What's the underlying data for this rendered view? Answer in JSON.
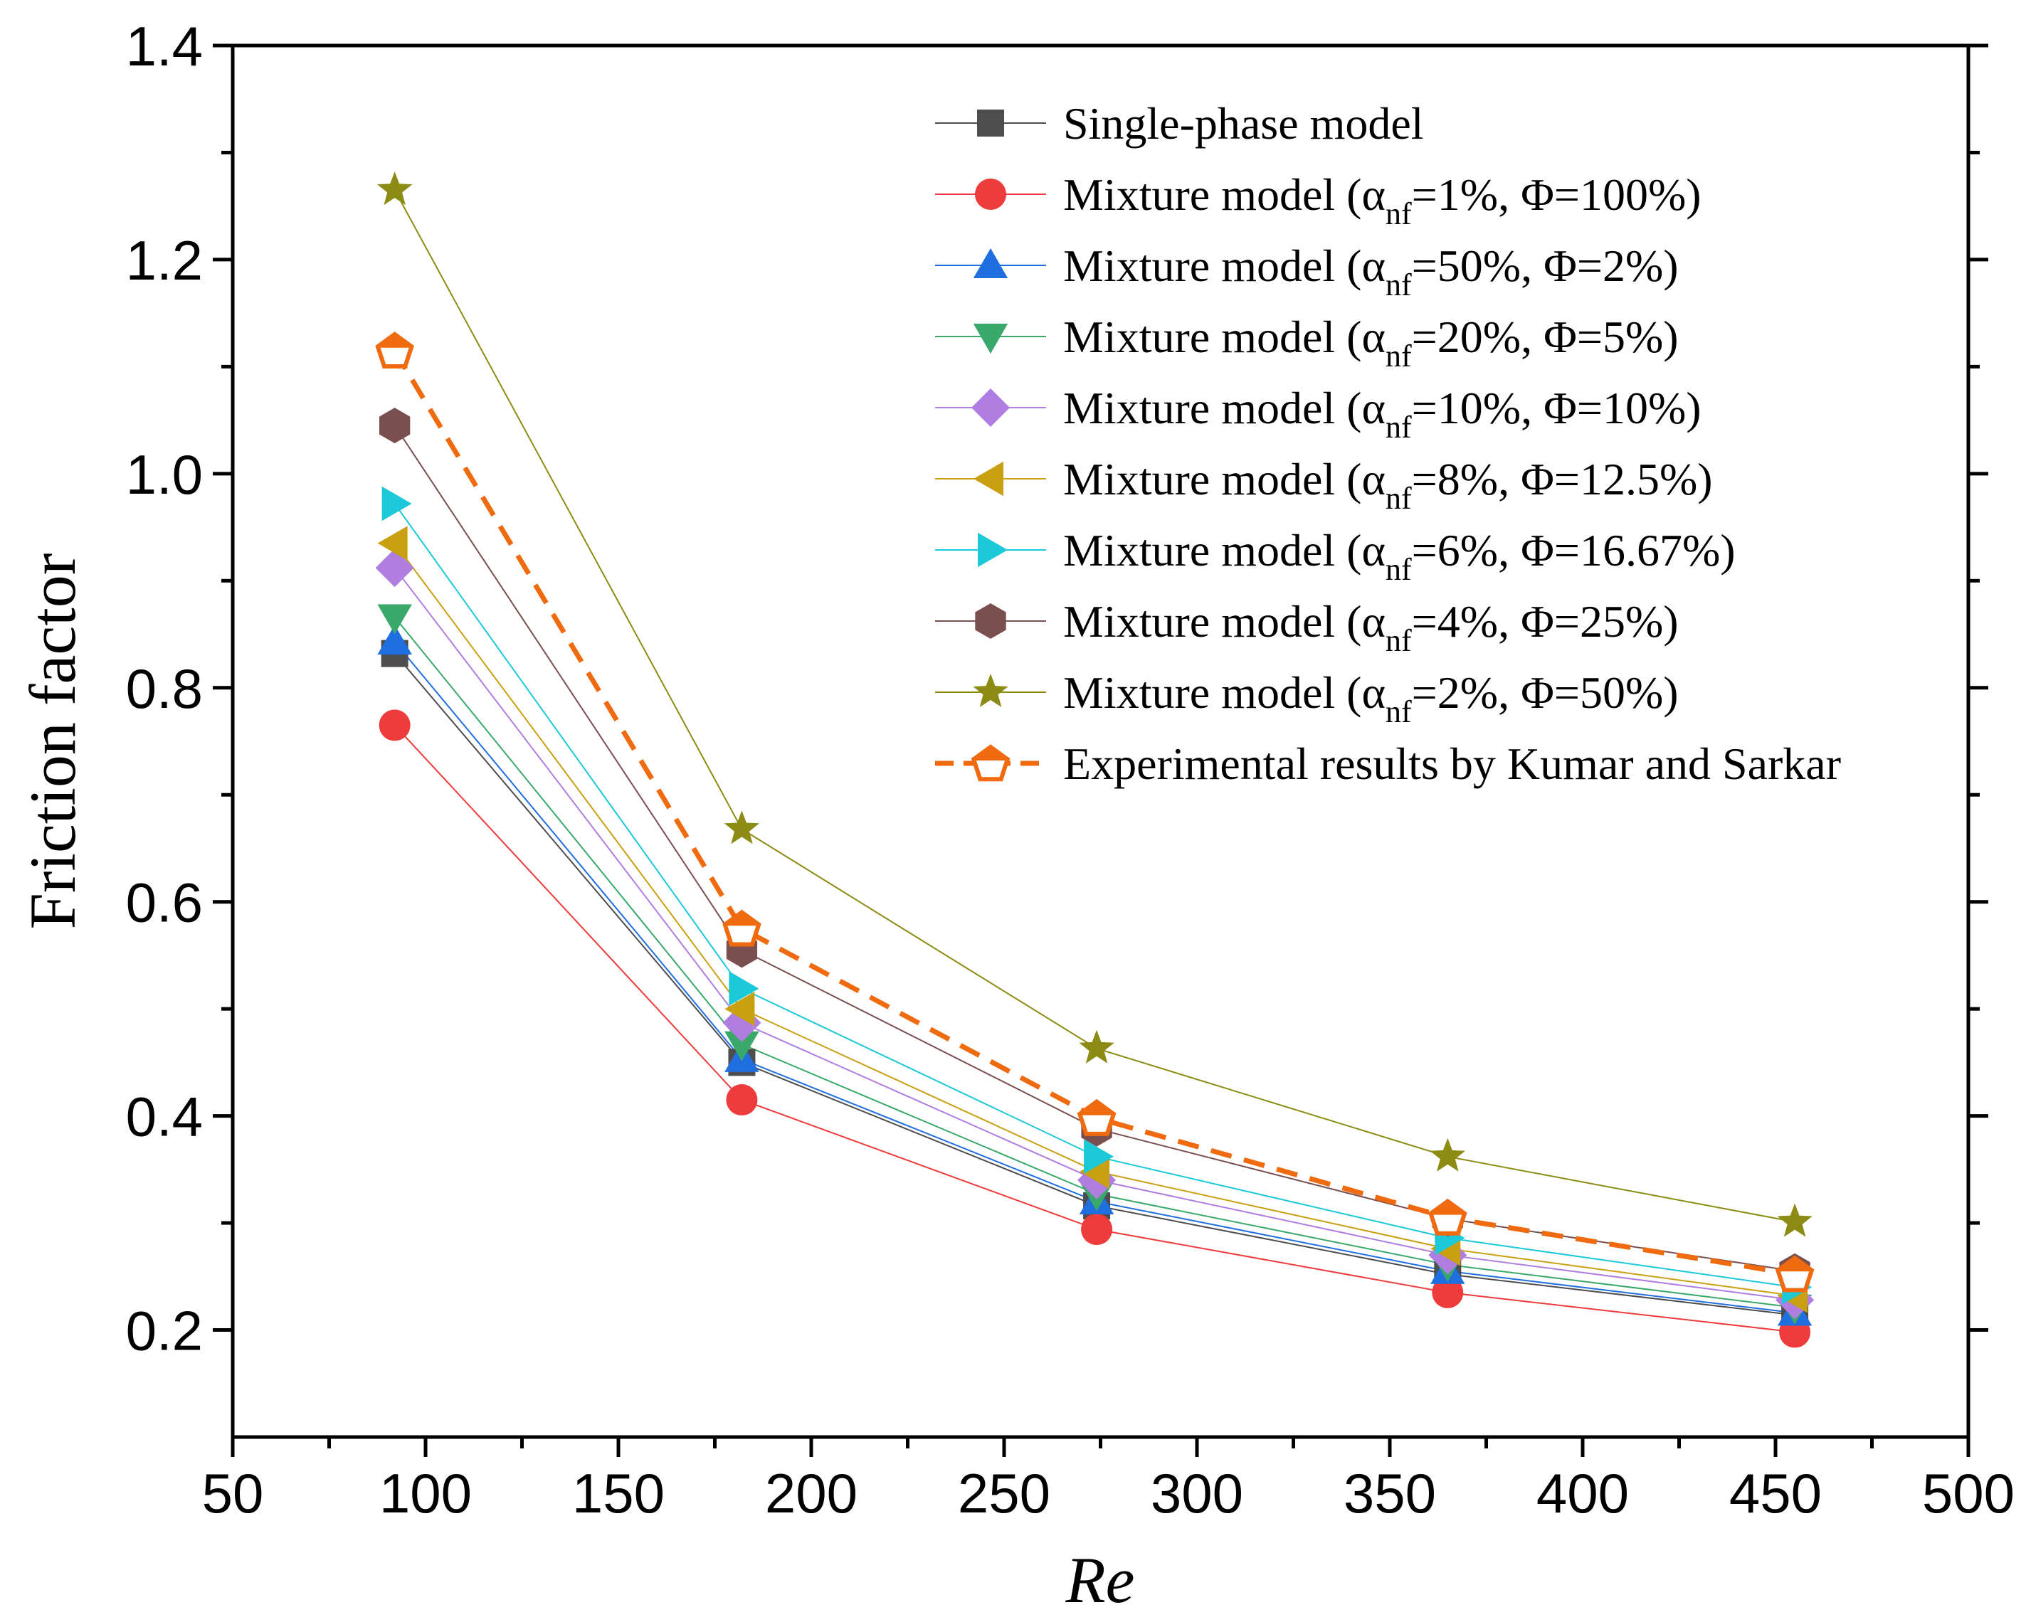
{
  "chart_data": {
    "type": "line",
    "xlabel": "Re",
    "ylabel": "Friction factor",
    "xlim": [
      50,
      500
    ],
    "ylim": [
      0.1,
      1.4
    ],
    "xticks": [
      "50",
      "100",
      "150",
      "200",
      "250",
      "300",
      "350",
      "400",
      "450",
      "500"
    ],
    "yticks": [
      "0.2",
      "0.4",
      "0.6",
      "0.8",
      "1.0",
      "1.2",
      "1.4"
    ],
    "x": [
      92,
      182,
      274,
      365,
      455
    ],
    "legend_position": "top-right",
    "series": [
      {
        "name": "Single-phase model",
        "prefix": "Single-phase model",
        "sub": "",
        "suffix": "",
        "color": "#4d4d4d",
        "marker": "square",
        "dashed": false,
        "values": [
          0.832,
          0.45,
          0.316,
          0.252,
          0.214
        ]
      },
      {
        "name": "Mixture model (αnf=1%, Φ=100%)",
        "prefix": "Mixture model (α",
        "sub": "nf",
        "suffix": "=1%, Φ=100%)",
        "color": "#ee3b3b",
        "marker": "circle",
        "dashed": false,
        "values": [
          0.765,
          0.415,
          0.294,
          0.235,
          0.198
        ]
      },
      {
        "name": "Mixture model (αnf=50%, Φ=2%)",
        "prefix": "Mixture model (α",
        "sub": "nf",
        "suffix": "=50%, Φ=2%)",
        "color": "#1f6fe0",
        "marker": "triangle-up",
        "dashed": false,
        "values": [
          0.843,
          0.453,
          0.32,
          0.255,
          0.216
        ]
      },
      {
        "name": "Mixture model (αnf=20%, Φ=5%)",
        "prefix": "Mixture model (α",
        "sub": "nf",
        "suffix": "=20%, Φ=5%)",
        "color": "#3aa86b",
        "marker": "triangle-down",
        "dashed": false,
        "values": [
          0.866,
          0.467,
          0.327,
          0.261,
          0.221
        ]
      },
      {
        "name": "Mixture model (αnf=10%, Φ=10%)",
        "prefix": "Mixture model (α",
        "sub": "nf",
        "suffix": "=10%, Φ=10%)",
        "color": "#b07ee0",
        "marker": "diamond",
        "dashed": false,
        "values": [
          0.912,
          0.487,
          0.34,
          0.27,
          0.228
        ]
      },
      {
        "name": "Mixture model (αnf=8%, Φ=12.5%)",
        "prefix": "Mixture model (α",
        "sub": "nf",
        "suffix": "=8%, Φ=12.5%)",
        "color": "#c9a012",
        "marker": "triangle-left",
        "dashed": false,
        "values": [
          0.935,
          0.5,
          0.348,
          0.276,
          0.232
        ]
      },
      {
        "name": "Mixture model (αnf=6%, Φ=16.67%)",
        "prefix": "Mixture model (α",
        "sub": "nf",
        "suffix": "=6%, Φ=16.67%)",
        "color": "#1cc9d9",
        "marker": "triangle-right",
        "dashed": false,
        "values": [
          0.972,
          0.519,
          0.362,
          0.286,
          0.24
        ]
      },
      {
        "name": "Mixture model (αnf=4%, Φ=25%)",
        "prefix": "Mixture model (α",
        "sub": "nf",
        "suffix": "=4%, Φ=25%)",
        "color": "#7a4f4f",
        "marker": "hexagon",
        "dashed": false,
        "values": [
          1.045,
          0.555,
          0.388,
          0.304,
          0.255
        ]
      },
      {
        "name": "Mixture model (αnf=2%, Φ=50%)",
        "prefix": "Mixture model (α",
        "sub": "nf",
        "suffix": "=2%, Φ=50%)",
        "color": "#8c8c14",
        "marker": "star",
        "dashed": false,
        "values": [
          1.265,
          0.668,
          0.463,
          0.362,
          0.301
        ]
      },
      {
        "name": "Experimental results by Kumar and Sarkar",
        "prefix": "Experimental results by Kumar and Sarkar",
        "sub": "",
        "suffix": "",
        "color": "#f06a0f",
        "marker": "pentagon-open",
        "dashed": true,
        "values": [
          1.115,
          0.575,
          0.398,
          0.305,
          0.252
        ]
      }
    ]
  }
}
